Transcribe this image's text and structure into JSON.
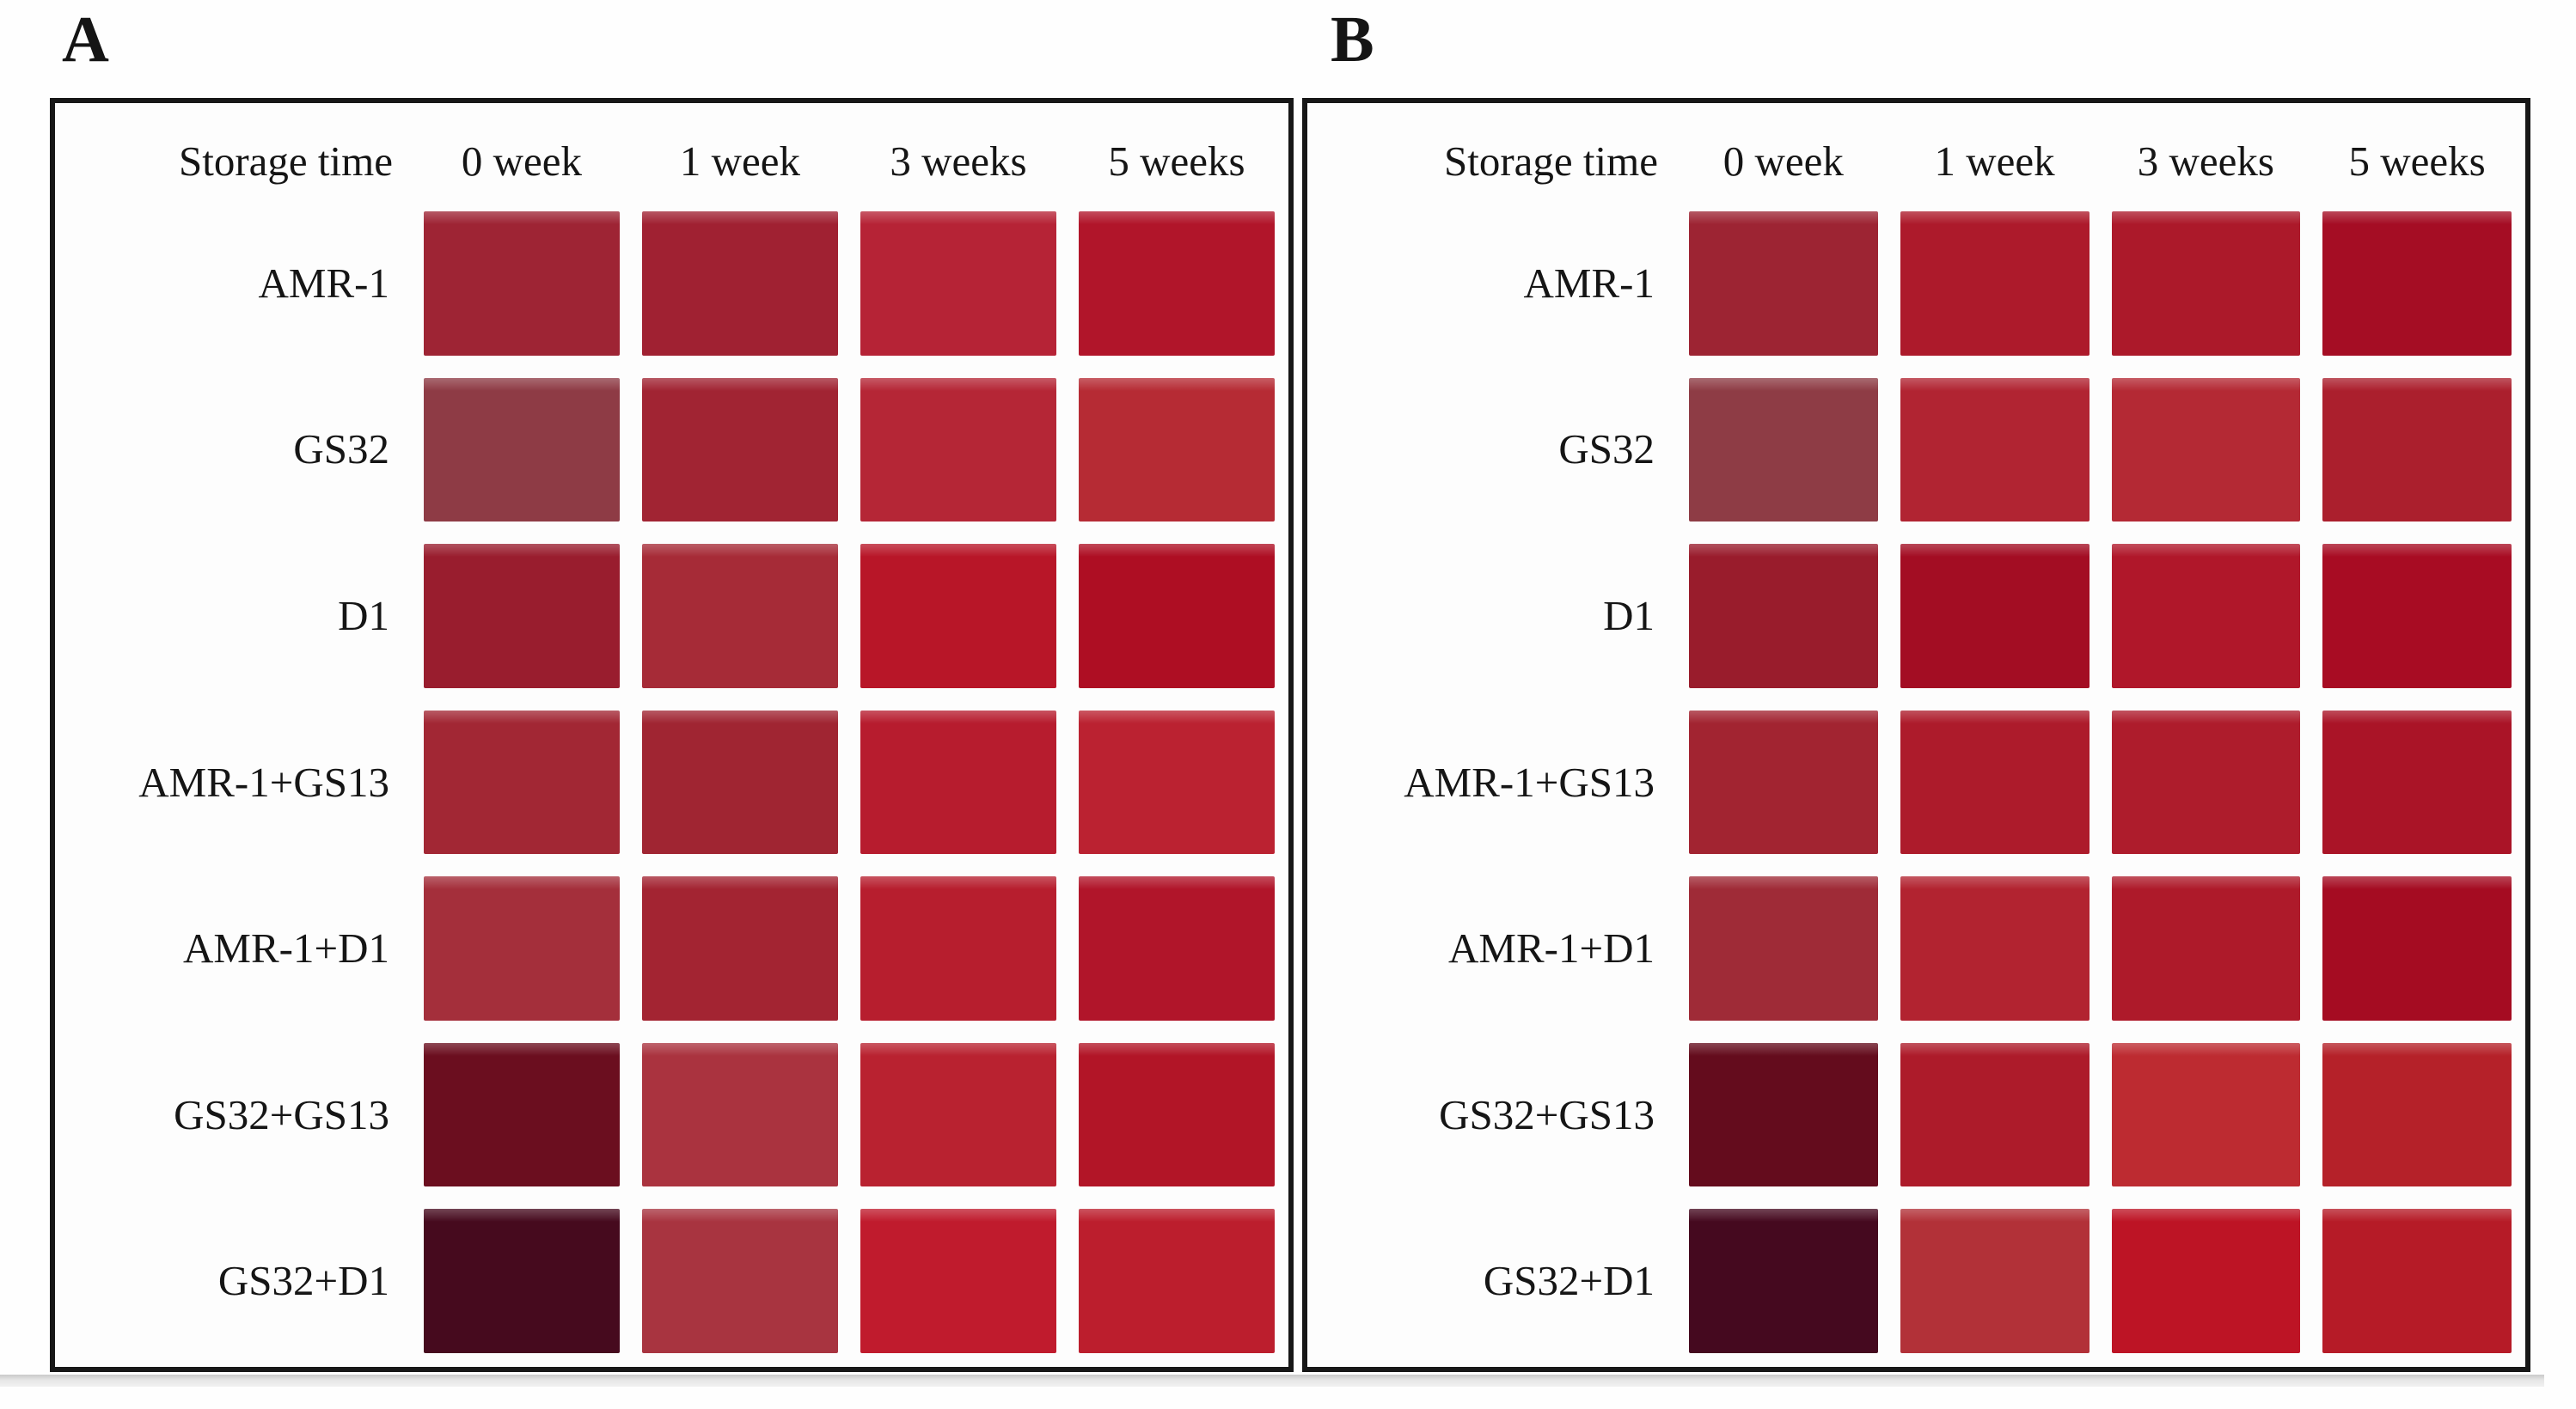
{
  "figure": {
    "panel_a_label": "A",
    "panel_b_label": "B"
  },
  "chart_data": [
    {
      "type": "heatmap",
      "panel": "A",
      "title": "Storage time",
      "header": [
        "Storage time",
        "0 week",
        "1 week",
        "3 weeks",
        "5 weeks"
      ],
      "columns": [
        "0 week",
        "1 week",
        "3 weeks",
        "5 weeks"
      ],
      "row_labels": [
        "AMR-1",
        "GS32",
        "D1",
        "AMR-1+GS13",
        "AMR-1+D1",
        "GS32+GS13",
        "GS32+D1"
      ],
      "legend": "cell values are sample colors (hex)",
      "cell_colors": [
        [
          "#9e2434",
          "#a02132",
          "#b62336",
          "#b1152a"
        ],
        [
          "#8e3b45",
          "#a12433",
          "#b52636",
          "#b62b34"
        ],
        [
          "#991d2e",
          "#a62b37",
          "#b81628",
          "#ae0e23"
        ],
        [
          "#a22734",
          "#a02532",
          "#b71c2e",
          "#bb2231"
        ],
        [
          "#a42f3b",
          "#a32432",
          "#b71e2e",
          "#b1152a"
        ],
        [
          "#6b0e1f",
          "#aa333f",
          "#b92230",
          "#b21527"
        ],
        [
          "#460a1e",
          "#a83440",
          "#c01b2d",
          "#bc1e2d"
        ]
      ]
    },
    {
      "type": "heatmap",
      "panel": "B",
      "title": "Storage time",
      "header": [
        "Storage time",
        "0 week",
        "1 week",
        "3 weeks",
        "5 weeks"
      ],
      "columns": [
        "0 week",
        "1 week",
        "3 weeks",
        "5 weeks"
      ],
      "row_labels": [
        "AMR-1",
        "GS32",
        "D1",
        "AMR-1+GS13",
        "AMR-1+D1",
        "GS32+GS13",
        "GS32+D1"
      ],
      "legend": "cell values are sample colors (hex)",
      "cell_colors": [
        [
          "#9d2433",
          "#ad1a2b",
          "#ac192a",
          "#a50d24"
        ],
        [
          "#8e3c45",
          "#b12432",
          "#b42934",
          "#ab1f2d"
        ],
        [
          "#991c2c",
          "#a30d23",
          "#b0172a",
          "#a80c23"
        ],
        [
          "#a22431",
          "#ad1b2b",
          "#ae1c2c",
          "#aa1427"
        ],
        [
          "#9f2b37",
          "#b22330",
          "#ae1a2a",
          "#a50c22"
        ],
        [
          "#640c1d",
          "#ad1b2a",
          "#bd2b31",
          "#b52129"
        ],
        [
          "#45091f",
          "#b23138",
          "#bd1425",
          "#b61b27"
        ]
      ]
    }
  ]
}
